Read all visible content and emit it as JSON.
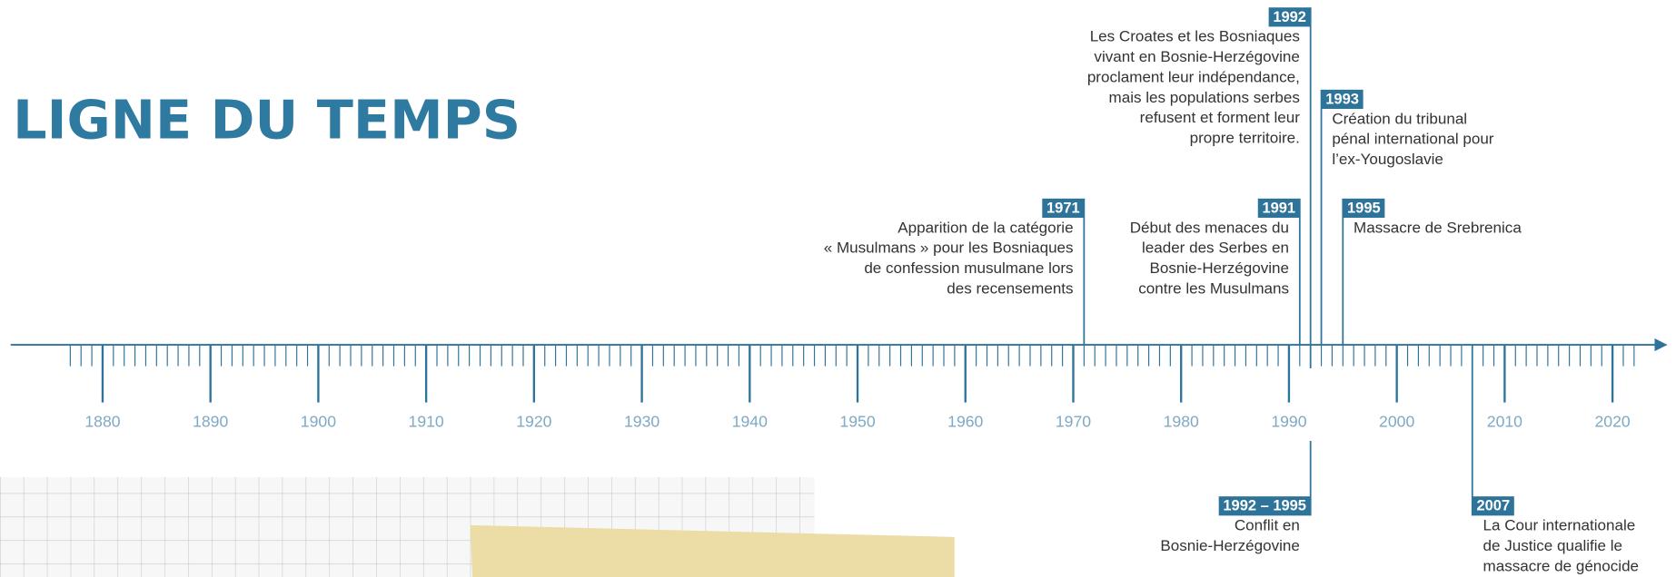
{
  "header": {
    "title": "LIGNE DU TEMPS"
  },
  "axis": {
    "years": [
      1880,
      1890,
      1900,
      1910,
      1920,
      1930,
      1940,
      1950,
      1960,
      1970,
      1980,
      1990,
      2000,
      2010,
      2020
    ]
  },
  "events": [
    {
      "label": "1971",
      "text": [
        "Apparition de la catégorie",
        "« Musulmans » pour les Bosniaques",
        "de confession musulmane lors",
        "des recensements"
      ]
    },
    {
      "label": "1991",
      "text": [
        "Début des menaces du",
        "leader des Serbes en",
        "Bosnie-Herzégovine",
        "contre les Musulmans"
      ]
    },
    {
      "label": "1992",
      "text": [
        "Les Croates et les Bosniaques",
        "vivant en Bosnie-Herzégovine",
        "proclament leur indépendance,",
        "mais les populations serbes",
        "refusent et forment leur",
        "propre territoire."
      ]
    },
    {
      "label": "1993",
      "text": [
        "Création du tribunal",
        "pénal international pour",
        "l’ex-Yougoslavie"
      ]
    },
    {
      "label": "1995",
      "text": [
        "Massacre de Srebrenica"
      ]
    },
    {
      "label": "1992 – 1995",
      "text": [
        "Conflit en",
        "Bosnie-Herzégovine"
      ]
    },
    {
      "label": "2007",
      "text": [
        "La Cour internationale",
        "de Justice qualifie le",
        "massacre de génocide"
      ]
    }
  ]
}
